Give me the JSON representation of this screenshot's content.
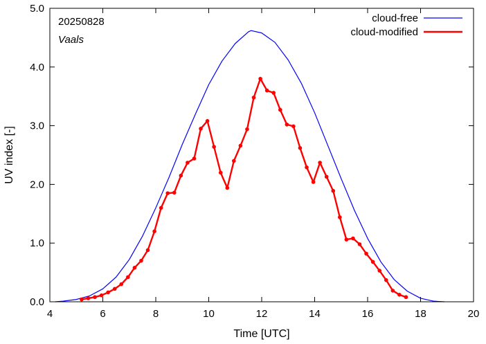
{
  "chart_data": {
    "type": "line",
    "annotations": {
      "date": "20250828",
      "location": "Vaals"
    },
    "xlabel": "Time  [UTC]",
    "ylabel": "UV index  [-]",
    "xlim": [
      4,
      20
    ],
    "ylim": [
      0,
      5
    ],
    "x_ticks": [
      4,
      6,
      8,
      10,
      12,
      14,
      16,
      18,
      20
    ],
    "x_tick_labels": [
      "4",
      "6",
      "8",
      "10",
      "12",
      "14",
      "16",
      "18",
      "20"
    ],
    "y_ticks": [
      0,
      1,
      2,
      3,
      4,
      5
    ],
    "y_tick_labels": [
      "0.0",
      "1.0",
      "2.0",
      "3.0",
      "4.0",
      "5.0"
    ],
    "grid": false,
    "legend_position": "top-right",
    "series": [
      {
        "name": "cloud-free",
        "color": "#0000ff",
        "markers": false,
        "x": [
          4.2,
          4.5,
          5.0,
          5.5,
          6.0,
          6.5,
          7.0,
          7.5,
          8.0,
          8.5,
          9.0,
          9.5,
          10.0,
          10.5,
          11.0,
          11.5,
          11.6,
          12.0,
          12.5,
          13.0,
          13.5,
          14.0,
          14.5,
          15.0,
          15.5,
          16.0,
          16.5,
          17.0,
          17.5,
          18.0,
          18.5,
          18.9
        ],
        "y": [
          0.0,
          0.01,
          0.04,
          0.1,
          0.22,
          0.42,
          0.72,
          1.12,
          1.6,
          2.12,
          2.68,
          3.2,
          3.7,
          4.1,
          4.4,
          4.6,
          4.62,
          4.58,
          4.42,
          4.12,
          3.72,
          3.22,
          2.66,
          2.1,
          1.56,
          1.08,
          0.68,
          0.38,
          0.18,
          0.06,
          0.01,
          0.0
        ]
      },
      {
        "name": "cloud-modified",
        "color": "#ff0000",
        "markers": true,
        "x": [
          5.2,
          5.45,
          5.7,
          5.95,
          6.2,
          6.45,
          6.7,
          6.95,
          7.2,
          7.45,
          7.7,
          7.95,
          8.2,
          8.45,
          8.7,
          8.95,
          9.2,
          9.45,
          9.7,
          9.95,
          10.2,
          10.45,
          10.7,
          10.95,
          11.2,
          11.45,
          11.7,
          11.95,
          12.2,
          12.45,
          12.7,
          12.95,
          13.2,
          13.45,
          13.7,
          13.95,
          14.2,
          14.45,
          14.7,
          14.95,
          15.2,
          15.45,
          15.7,
          15.95,
          16.2,
          16.45,
          16.7,
          16.95,
          17.2,
          17.45
        ],
        "y": [
          0.04,
          0.06,
          0.08,
          0.11,
          0.16,
          0.22,
          0.3,
          0.42,
          0.58,
          0.7,
          0.88,
          1.2,
          1.6,
          1.85,
          1.86,
          2.15,
          2.37,
          2.44,
          2.95,
          3.08,
          2.64,
          2.2,
          1.94,
          2.4,
          2.66,
          2.94,
          3.48,
          3.8,
          3.6,
          3.56,
          3.27,
          3.02,
          2.99,
          2.62,
          2.29,
          2.04,
          2.37,
          2.13,
          1.89,
          1.44,
          1.06,
          1.08,
          0.98,
          0.82,
          0.68,
          0.53,
          0.37,
          0.19,
          0.12,
          0.08
        ]
      }
    ]
  }
}
